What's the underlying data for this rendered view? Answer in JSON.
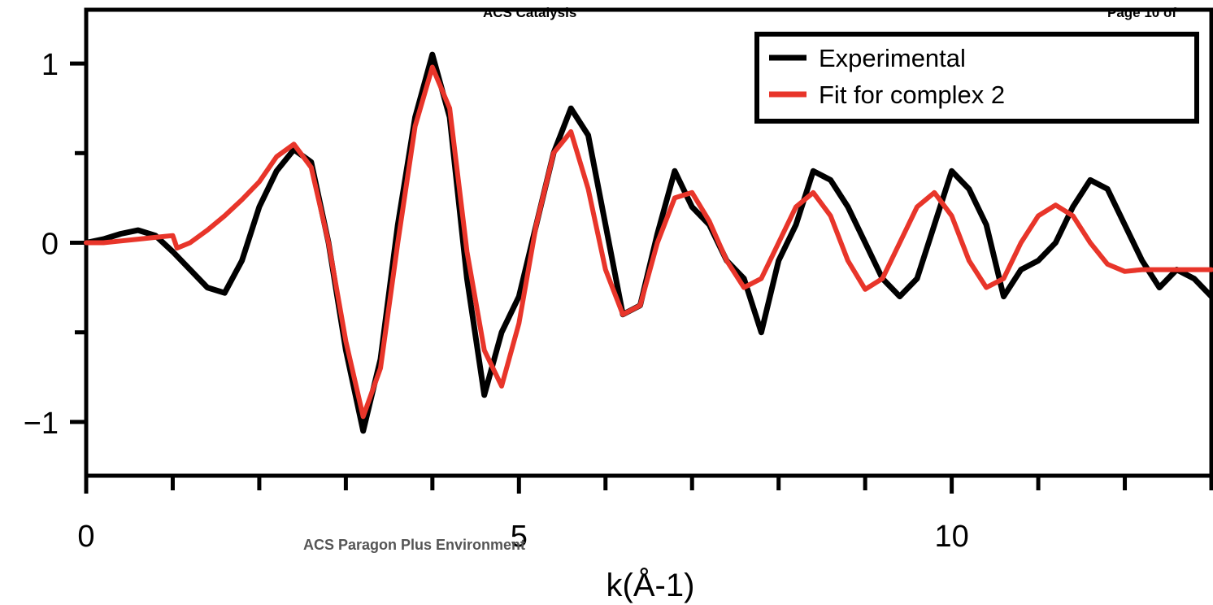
{
  "page_header": {
    "journal": "ACS Catalysis",
    "page": "Page 10 of"
  },
  "page_footer": "ACS Paragon Plus Environment",
  "chart_data": {
    "type": "line",
    "title": "",
    "xlabel": "k(Å-1)",
    "ylabel": "",
    "xlim": [
      0,
      13
    ],
    "ylim": [
      -1.3,
      1.3
    ],
    "x_ticks": [
      0,
      5,
      10
    ],
    "x_tick_labels": [
      "0",
      "5",
      "10"
    ],
    "x_minor_step": 1,
    "y_ticks": [
      1,
      0,
      -1
    ],
    "y_tick_labels": [
      "1",
      "0",
      "−1"
    ],
    "y_minor_step": 0.5,
    "grid": false,
    "legend_position": "top-right",
    "colors": {
      "experimental": "#000000",
      "fit": "#e8352a"
    },
    "series": [
      {
        "name": "Experimental",
        "x": [
          0.0,
          0.2,
          0.4,
          0.6,
          0.8,
          1.0,
          1.2,
          1.4,
          1.6,
          1.8,
          2.0,
          2.2,
          2.4,
          2.6,
          2.8,
          3.0,
          3.2,
          3.4,
          3.6,
          3.8,
          4.0,
          4.2,
          4.4,
          4.6,
          4.8,
          5.0,
          5.2,
          5.4,
          5.6,
          5.8,
          6.0,
          6.2,
          6.4,
          6.6,
          6.8,
          7.0,
          7.2,
          7.4,
          7.6,
          7.8,
          8.0,
          8.2,
          8.4,
          8.6,
          8.8,
          9.0,
          9.2,
          9.4,
          9.6,
          9.8,
          10.0,
          10.2,
          10.4,
          10.6,
          10.8,
          11.0,
          11.2,
          11.4,
          11.6,
          11.8,
          12.0,
          12.2,
          12.4,
          12.6,
          12.8,
          13.0
        ],
        "y": [
          0.0,
          0.02,
          0.05,
          0.07,
          0.04,
          -0.05,
          -0.15,
          -0.25,
          -0.28,
          -0.1,
          0.2,
          0.4,
          0.52,
          0.45,
          0.0,
          -0.6,
          -1.05,
          -0.65,
          0.1,
          0.7,
          1.05,
          0.7,
          -0.2,
          -0.85,
          -0.5,
          -0.3,
          0.1,
          0.5,
          0.75,
          0.6,
          0.1,
          -0.4,
          -0.35,
          0.05,
          0.4,
          0.2,
          0.1,
          -0.1,
          -0.2,
          -0.5,
          -0.1,
          0.1,
          0.4,
          0.35,
          0.2,
          0.0,
          -0.2,
          -0.3,
          -0.2,
          0.1,
          0.4,
          0.3,
          0.1,
          -0.3,
          -0.15,
          -0.1,
          0.0,
          0.2,
          0.35,
          0.3,
          0.1,
          -0.1,
          -0.25,
          -0.15,
          -0.2,
          -0.3
        ]
      },
      {
        "name": "Fit for complex 2",
        "x": [
          0.0,
          0.2,
          0.4,
          0.6,
          0.8,
          1.0,
          1.05,
          1.2,
          1.4,
          1.6,
          1.8,
          2.0,
          2.2,
          2.4,
          2.6,
          2.8,
          3.0,
          3.2,
          3.4,
          3.6,
          3.8,
          4.0,
          4.2,
          4.4,
          4.6,
          4.8,
          5.0,
          5.2,
          5.4,
          5.6,
          5.8,
          6.0,
          6.2,
          6.4,
          6.6,
          6.8,
          7.0,
          7.2,
          7.4,
          7.6,
          7.8,
          8.0,
          8.2,
          8.4,
          8.6,
          8.8,
          9.0,
          9.2,
          9.4,
          9.6,
          9.8,
          10.0,
          10.2,
          10.4,
          10.6,
          10.8,
          11.0,
          11.2,
          11.4,
          11.6,
          11.8,
          12.0,
          12.2,
          12.4,
          12.6,
          12.8,
          13.0
        ],
        "y": [
          0.0,
          0.0,
          0.01,
          0.02,
          0.03,
          0.04,
          -0.03,
          0.0,
          0.07,
          0.15,
          0.24,
          0.34,
          0.48,
          0.55,
          0.42,
          0.0,
          -0.55,
          -0.97,
          -0.7,
          0.0,
          0.65,
          0.98,
          0.75,
          -0.05,
          -0.6,
          -0.8,
          -0.45,
          0.1,
          0.5,
          0.62,
          0.3,
          -0.15,
          -0.4,
          -0.35,
          0.0,
          0.25,
          0.28,
          0.12,
          -0.1,
          -0.25,
          -0.2,
          0.0,
          0.2,
          0.28,
          0.15,
          -0.1,
          -0.26,
          -0.2,
          0.0,
          0.2,
          0.28,
          0.15,
          -0.1,
          -0.25,
          -0.2,
          0.0,
          0.15,
          0.21,
          0.15,
          0.0,
          -0.12,
          -0.16,
          -0.15,
          -0.15,
          -0.15,
          -0.15,
          -0.15
        ]
      }
    ]
  }
}
